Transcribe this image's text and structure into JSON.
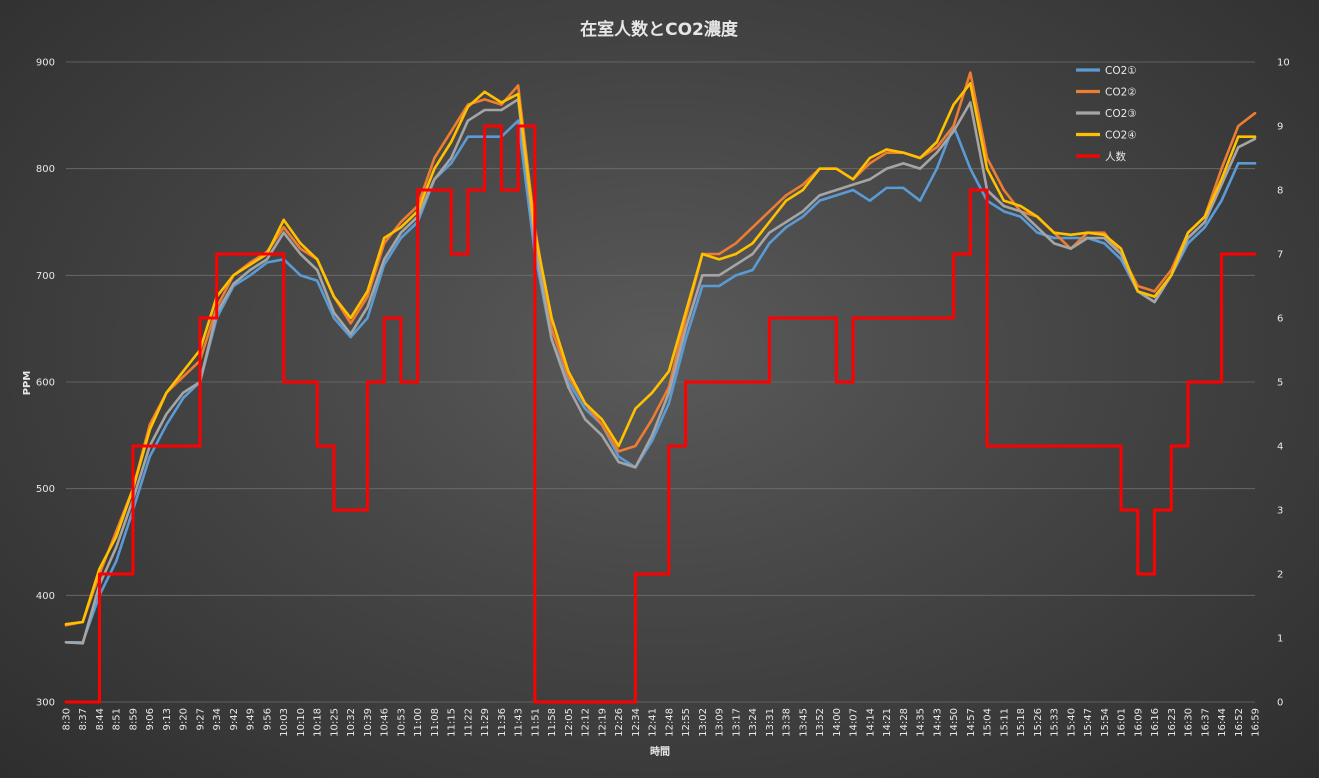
{
  "chart_data": {
    "type": "line",
    "title": "在室人数とCO2濃度",
    "xlabel": "時間",
    "ylabel": "PPM",
    "y_left_range": [
      300,
      900
    ],
    "y_left_ticks": [
      300,
      400,
      500,
      600,
      700,
      800,
      900
    ],
    "y_right_range": [
      0,
      10
    ],
    "y_right_ticks": [
      0,
      1,
      2,
      3,
      4,
      5,
      6,
      7,
      8,
      9,
      10
    ],
    "x_tick_labels": [
      "8:30",
      "8:37",
      "8:44",
      "8:51",
      "8:59",
      "9:06",
      "9:13",
      "9:20",
      "9:27",
      "9:34",
      "9:42",
      "9:49",
      "9:56",
      "10:03",
      "10:10",
      "10:18",
      "10:25",
      "10:32",
      "10:39",
      "10:46",
      "10:53",
      "11:00",
      "11:08",
      "11:15",
      "11:22",
      "11:29",
      "11:36",
      "11:43",
      "11:51",
      "11:58",
      "12:05",
      "12:12",
      "12:19",
      "12:26",
      "12:34",
      "12:41",
      "12:48",
      "12:55",
      "13:02",
      "13:09",
      "13:17",
      "13:24",
      "13:31",
      "13:38",
      "13:45",
      "13:52",
      "14:00",
      "14:07",
      "14:14",
      "14:21",
      "14:28",
      "14:35",
      "14:43",
      "14:50",
      "14:57",
      "15:04",
      "15:11",
      "15:18",
      "15:26",
      "15:33",
      "15:40",
      "15:47",
      "15:54",
      "16:01",
      "16:09",
      "16:16",
      "16:23",
      "16:30",
      "16:37",
      "16:44",
      "16:52",
      "16:59"
    ],
    "grid": "horizontal",
    "legend_position": "top-right",
    "series": [
      {
        "name": "CO2①",
        "axis": "left",
        "color": "#5b9bd5",
        "x": [
          "8:30",
          "8:37",
          "8:44",
          "8:51",
          "8:59",
          "9:06",
          "9:13",
          "9:20",
          "9:27",
          "9:34",
          "9:42",
          "9:49",
          "9:56",
          "10:03",
          "10:10",
          "10:18",
          "10:25",
          "10:32",
          "10:39",
          "10:46",
          "10:53",
          "11:00",
          "11:08",
          "11:15",
          "11:22",
          "11:29",
          "11:36",
          "11:43",
          "11:51",
          "11:58",
          "12:05",
          "12:12",
          "12:19",
          "12:26",
          "12:34",
          "12:41",
          "12:48",
          "12:55",
          "13:02",
          "13:09",
          "13:17",
          "13:24",
          "13:31",
          "13:38",
          "13:45",
          "13:52",
          "14:00",
          "14:07",
          "14:14",
          "14:21",
          "14:28",
          "14:35",
          "14:43",
          "14:50",
          "14:57",
          "15:04",
          "15:11",
          "15:18",
          "15:26",
          "15:33",
          "15:40",
          "15:47",
          "15:54",
          "16:01",
          "16:09",
          "16:16",
          "16:23",
          "16:30",
          "16:37",
          "16:44",
          "16:52",
          "16:59"
        ],
        "values": [
          356,
          356,
          400,
          432,
          480,
          530,
          560,
          585,
          600,
          660,
          690,
          700,
          712,
          715,
          700,
          695,
          660,
          642,
          660,
          710,
          735,
          750,
          790,
          805,
          830,
          830,
          830,
          845,
          720,
          640,
          600,
          575,
          560,
          530,
          520,
          545,
          580,
          640,
          690,
          690,
          700,
          705,
          730,
          745,
          755,
          770,
          775,
          780,
          770,
          782,
          782,
          770,
          800,
          840,
          800,
          770,
          760,
          755,
          740,
          735,
          735,
          735,
          730,
          715,
          685,
          675,
          700,
          730,
          745,
          770,
          805,
          805
        ]
      },
      {
        "name": "CO2②",
        "axis": "left",
        "color": "#ed7d31",
        "x": [
          "8:30",
          "8:37",
          "8:44",
          "8:51",
          "8:59",
          "9:06",
          "9:13",
          "9:20",
          "9:27",
          "9:34",
          "9:42",
          "9:49",
          "9:56",
          "10:03",
          "10:10",
          "10:18",
          "10:25",
          "10:32",
          "10:39",
          "10:46",
          "10:53",
          "11:00",
          "11:08",
          "11:15",
          "11:22",
          "11:29",
          "11:36",
          "11:43",
          "11:51",
          "11:58",
          "12:05",
          "12:12",
          "12:19",
          "12:26",
          "12:34",
          "12:41",
          "12:48",
          "12:55",
          "13:02",
          "13:09",
          "13:17",
          "13:24",
          "13:31",
          "13:38",
          "13:45",
          "13:52",
          "14:00",
          "14:07",
          "14:14",
          "14:21",
          "14:28",
          "14:35",
          "14:43",
          "14:50",
          "14:57",
          "15:04",
          "15:11",
          "15:18",
          "15:26",
          "15:33",
          "15:40",
          "15:47",
          "15:54",
          "16:01",
          "16:09",
          "16:16",
          "16:23",
          "16:30",
          "16:37",
          "16:44",
          "16:52",
          "16:59"
        ],
        "values": [
          372,
          375,
          420,
          460,
          500,
          560,
          590,
          605,
          620,
          670,
          700,
          712,
          722,
          745,
          725,
          715,
          680,
          655,
          680,
          730,
          750,
          765,
          810,
          835,
          860,
          865,
          860,
          878,
          745,
          650,
          605,
          580,
          560,
          535,
          540,
          565,
          595,
          660,
          720,
          720,
          730,
          745,
          760,
          775,
          785,
          800,
          800,
          790,
          805,
          815,
          815,
          810,
          820,
          840,
          890,
          810,
          780,
          760,
          755,
          740,
          725,
          740,
          740,
          720,
          690,
          685,
          705,
          740,
          755,
          800,
          840,
          852
        ]
      },
      {
        "name": "CO2③",
        "axis": "left",
        "color": "#a5a5a5",
        "x": [
          "8:30",
          "8:37",
          "8:44",
          "8:51",
          "8:59",
          "9:06",
          "9:13",
          "9:20",
          "9:27",
          "9:34",
          "9:42",
          "9:49",
          "9:56",
          "10:03",
          "10:10",
          "10:18",
          "10:25",
          "10:32",
          "10:39",
          "10:46",
          "10:53",
          "11:00",
          "11:08",
          "11:15",
          "11:22",
          "11:29",
          "11:36",
          "11:43",
          "11:51",
          "11:58",
          "12:05",
          "12:12",
          "12:19",
          "12:26",
          "12:34",
          "12:41",
          "12:48",
          "12:55",
          "13:02",
          "13:09",
          "13:17",
          "13:24",
          "13:31",
          "13:38",
          "13:45",
          "13:52",
          "14:00",
          "14:07",
          "14:14",
          "14:21",
          "14:28",
          "14:35",
          "14:43",
          "14:50",
          "14:57",
          "15:04",
          "15:11",
          "15:18",
          "15:26",
          "15:33",
          "15:40",
          "15:47",
          "15:54",
          "16:01",
          "16:09",
          "16:16",
          "16:23",
          "16:30",
          "16:37",
          "16:44",
          "16:52",
          "16:59"
        ],
        "values": [
          356,
          355,
          410,
          445,
          490,
          540,
          570,
          590,
          600,
          665,
          692,
          705,
          715,
          740,
          720,
          705,
          665,
          645,
          670,
          715,
          740,
          755,
          790,
          810,
          845,
          855,
          855,
          865,
          730,
          640,
          595,
          565,
          550,
          525,
          520,
          550,
          590,
          650,
          700,
          700,
          710,
          720,
          740,
          750,
          760,
          775,
          780,
          785,
          790,
          800,
          805,
          800,
          815,
          835,
          862,
          780,
          765,
          760,
          745,
          730,
          725,
          735,
          735,
          720,
          685,
          675,
          700,
          735,
          750,
          785,
          820,
          828
        ]
      },
      {
        "name": "CO2④",
        "axis": "left",
        "color": "#ffc000",
        "x": [
          "8:30",
          "8:37",
          "8:44",
          "8:51",
          "8:59",
          "9:06",
          "9:13",
          "9:20",
          "9:27",
          "9:34",
          "9:42",
          "9:49",
          "9:56",
          "10:03",
          "10:10",
          "10:18",
          "10:25",
          "10:32",
          "10:39",
          "10:46",
          "10:53",
          "11:00",
          "11:08",
          "11:15",
          "11:22",
          "11:29",
          "11:36",
          "11:43",
          "11:51",
          "11:58",
          "12:05",
          "12:12",
          "12:19",
          "12:26",
          "12:34",
          "12:41",
          "12:48",
          "12:55",
          "13:02",
          "13:09",
          "13:17",
          "13:24",
          "13:31",
          "13:38",
          "13:45",
          "13:52",
          "14:00",
          "14:07",
          "14:14",
          "14:21",
          "14:28",
          "14:35",
          "14:43",
          "14:50",
          "14:57",
          "15:04",
          "15:11",
          "15:18",
          "15:26",
          "15:33",
          "15:40",
          "15:47",
          "15:54",
          "16:01",
          "16:09",
          "16:16",
          "16:23",
          "16:30",
          "16:37",
          "16:44",
          "16:52",
          "16:59"
        ],
        "values": [
          373,
          375,
          425,
          455,
          500,
          555,
          590,
          610,
          630,
          680,
          700,
          710,
          720,
          752,
          730,
          715,
          680,
          660,
          685,
          735,
          745,
          760,
          800,
          825,
          858,
          872,
          862,
          870,
          740,
          660,
          610,
          580,
          565,
          540,
          575,
          590,
          610,
          665,
          720,
          715,
          720,
          730,
          750,
          770,
          780,
          800,
          800,
          790,
          810,
          818,
          815,
          810,
          825,
          860,
          880,
          800,
          770,
          765,
          755,
          740,
          738,
          740,
          738,
          725,
          685,
          680,
          700,
          740,
          755,
          790,
          830,
          830
        ]
      },
      {
        "name": "人数",
        "axis": "right",
        "color": "#ff0000",
        "step": true,
        "x": [
          "8:30",
          "8:37",
          "8:44",
          "8:51",
          "8:59",
          "9:06",
          "9:13",
          "9:20",
          "9:27",
          "9:34",
          "9:42",
          "9:49",
          "9:56",
          "10:03",
          "10:10",
          "10:18",
          "10:25",
          "10:32",
          "10:39",
          "10:46",
          "10:53",
          "11:00",
          "11:08",
          "11:15",
          "11:22",
          "11:29",
          "11:36",
          "11:43",
          "11:51",
          "11:58",
          "12:05",
          "12:12",
          "12:19",
          "12:26",
          "12:34",
          "12:41",
          "12:48",
          "12:55",
          "13:02",
          "13:09",
          "13:17",
          "13:24",
          "13:31",
          "13:38",
          "13:45",
          "13:52",
          "14:00",
          "14:07",
          "14:14",
          "14:21",
          "14:28",
          "14:35",
          "14:43",
          "14:50",
          "14:57",
          "15:04",
          "15:11",
          "15:18",
          "15:26",
          "15:33",
          "15:40",
          "15:47",
          "15:54",
          "16:01",
          "16:09",
          "16:16",
          "16:23",
          "16:30",
          "16:37",
          "16:44",
          "16:52",
          "16:59"
        ],
        "values": [
          0,
          0,
          2,
          2,
          4,
          4,
          4,
          4,
          6,
          7,
          7,
          7,
          7,
          5,
          5,
          4,
          3,
          3,
          5,
          6,
          5,
          8,
          8,
          7,
          8,
          9,
          8,
          9,
          0,
          0,
          0,
          0,
          0,
          0,
          2,
          2,
          4,
          5,
          5,
          5,
          5,
          5,
          6,
          6,
          6,
          6,
          5,
          6,
          6,
          6,
          6,
          6,
          6,
          7,
          8,
          4,
          4,
          4,
          4,
          4,
          4,
          4,
          4,
          3,
          2,
          3,
          4,
          5,
          5,
          7,
          7,
          7
        ]
      }
    ]
  }
}
